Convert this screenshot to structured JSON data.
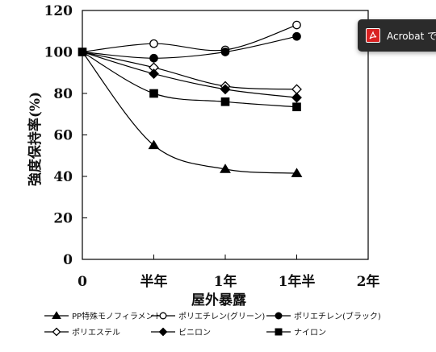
{
  "chart_data": {
    "type": "line",
    "title": "",
    "xlabel": "屋外暴露",
    "ylabel": "強度保持率(%)",
    "x_ticks": [
      "0",
      "半年",
      "1年",
      "1年半",
      "2年"
    ],
    "x": [
      0,
      0.5,
      1,
      1.5
    ],
    "xlim": [
      0,
      2
    ],
    "y_ticks": [
      "0",
      "20",
      "40",
      "60",
      "80",
      "100",
      "120"
    ],
    "ylim": [
      0,
      120
    ],
    "grid": false,
    "legend_position": "bottom",
    "series": [
      {
        "name": "PP特殊モノフィラメント",
        "marker": "triangle",
        "fill": "filled",
        "values": [
          100,
          55,
          43.5,
          41.5
        ]
      },
      {
        "name": "ポリエチレン(グリーン)",
        "marker": "circle",
        "fill": "open",
        "values": [
          100,
          104,
          101,
          113
        ]
      },
      {
        "name": "ポリエチレン(ブラック)",
        "marker": "circle",
        "fill": "filled",
        "values": [
          100,
          97,
          100,
          107.5
        ]
      },
      {
        "name": "ポリエステル",
        "marker": "diamond",
        "fill": "open",
        "values": [
          100,
          92.5,
          83.5,
          82
        ]
      },
      {
        "name": "ビニロン",
        "marker": "diamond",
        "fill": "filled",
        "values": [
          100,
          89.5,
          82,
          78
        ]
      },
      {
        "name": "ナイロン",
        "marker": "square",
        "fill": "filled",
        "values": [
          100,
          80,
          76,
          73.5
        ]
      }
    ]
  },
  "acrobat": {
    "label": "Acrobat で",
    "icon": "acrobat-icon"
  }
}
